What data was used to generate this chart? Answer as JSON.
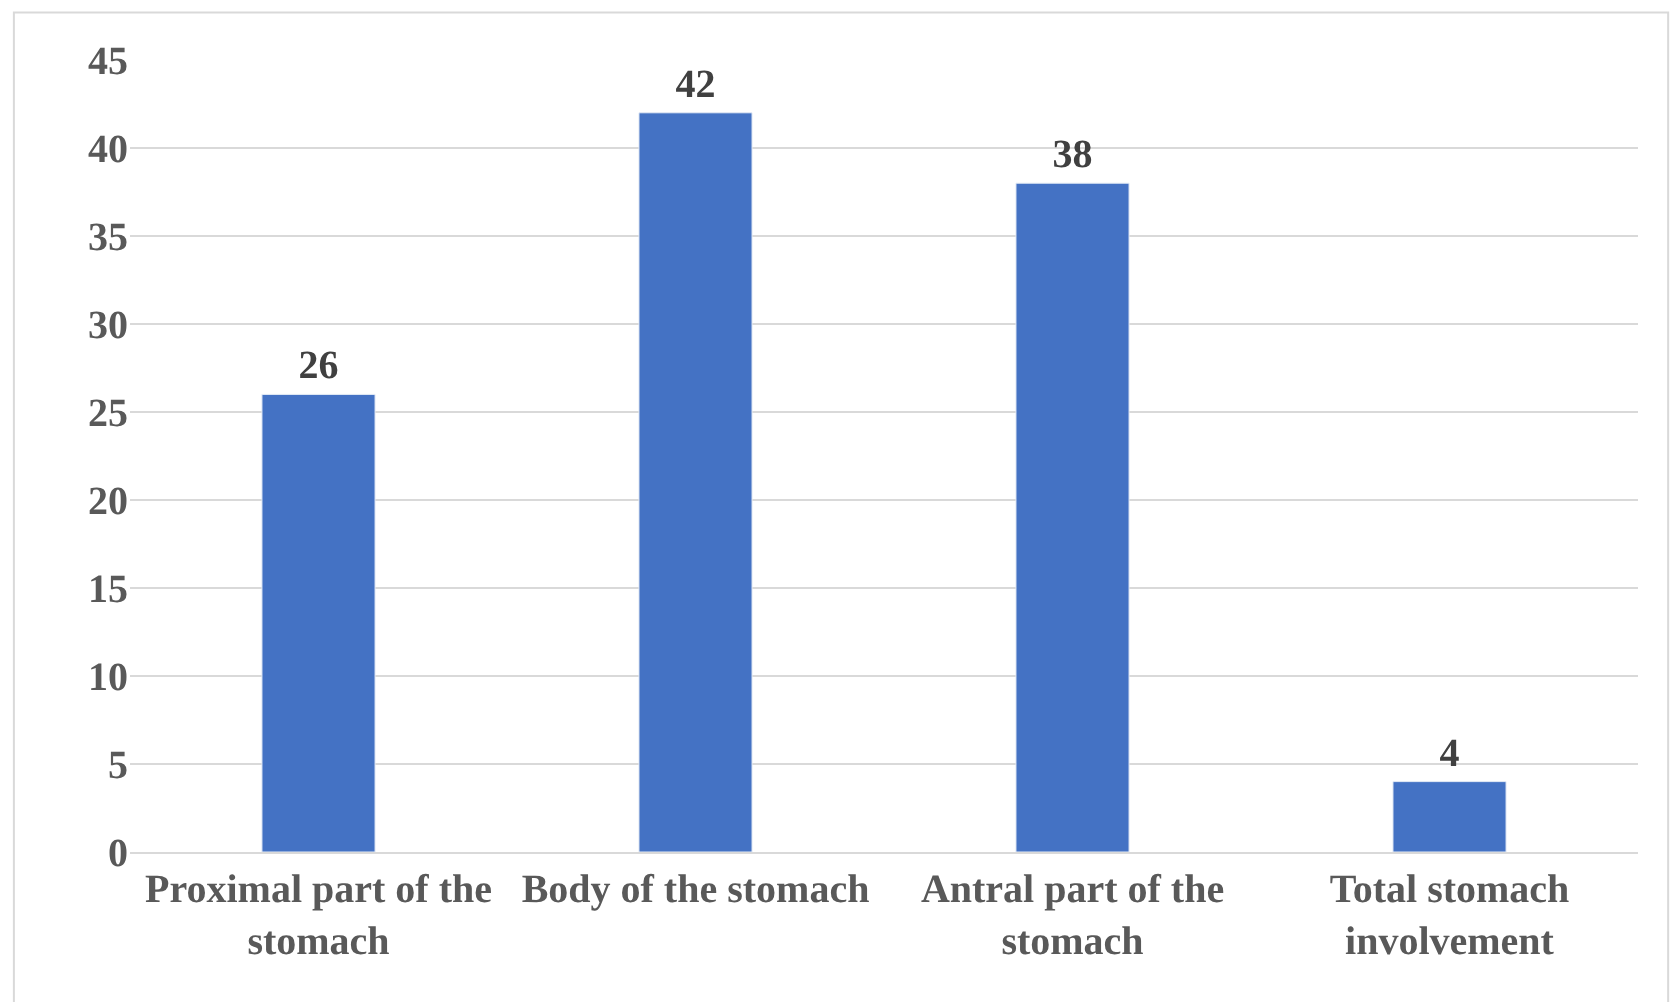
{
  "chart_data": {
    "type": "bar",
    "categories": [
      "Proximal part of the stomach",
      "Body of the stomach",
      "Antral part of the stomach",
      "Total stomach involvement"
    ],
    "values": [
      26,
      42,
      38,
      4
    ],
    "color": "#4472c4",
    "ylim": [
      0,
      45
    ],
    "yticks": [
      0,
      5,
      10,
      15,
      20,
      25,
      30,
      35,
      40,
      45
    ],
    "grid": "y",
    "data_labels": true,
    "legend": false
  }
}
